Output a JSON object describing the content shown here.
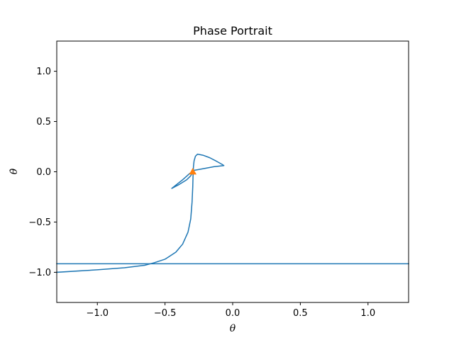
{
  "chart_data": {
    "type": "line",
    "title": "Phase Portrait",
    "xlabel": "θ",
    "ylabel": "θ̇",
    "xlim": [
      -1.3,
      1.3
    ],
    "ylim": [
      -1.3,
      1.3
    ],
    "grid": false,
    "xticks": [
      {
        "value": -1.0,
        "label": "−1.0"
      },
      {
        "value": -0.5,
        "label": "−0.5"
      },
      {
        "value": 0.0,
        "label": "0.0"
      },
      {
        "value": 0.5,
        "label": "0.5"
      },
      {
        "value": 1.0,
        "label": "1.0"
      }
    ],
    "yticks": [
      {
        "value": -1.0,
        "label": "−1.0"
      },
      {
        "value": -0.5,
        "label": "−0.5"
      },
      {
        "value": 0.0,
        "label": "0.0"
      },
      {
        "value": 0.5,
        "label": "0.5"
      },
      {
        "value": 1.0,
        "label": "1.0"
      }
    ],
    "series": [
      {
        "color": "#1f77b4",
        "points": [
          [
            -1.3,
            -1.0
          ],
          [
            -1.0,
            -0.975
          ],
          [
            -0.8,
            -0.955
          ],
          [
            -0.65,
            -0.93
          ],
          [
            -0.58,
            -0.905
          ],
          [
            -0.5,
            -0.87
          ],
          [
            -0.42,
            -0.8
          ],
          [
            -0.37,
            -0.72
          ],
          [
            -0.33,
            -0.6
          ],
          [
            -0.31,
            -0.47
          ],
          [
            -0.3,
            -0.3
          ],
          [
            -0.295,
            -0.15
          ],
          [
            -0.293,
            -0.05
          ],
          [
            -0.29,
            0.05
          ],
          [
            -0.285,
            0.11
          ],
          [
            -0.275,
            0.155
          ],
          [
            -0.26,
            0.175
          ],
          [
            -0.22,
            0.165
          ],
          [
            -0.17,
            0.14
          ],
          [
            -0.12,
            0.105
          ],
          [
            -0.08,
            0.075
          ],
          [
            -0.065,
            0.062
          ],
          [
            -0.14,
            0.05
          ],
          [
            -0.22,
            0.03
          ],
          [
            -0.29,
            0.013
          ],
          [
            -0.32,
            -0.02
          ],
          [
            -0.37,
            -0.08
          ],
          [
            -0.45,
            -0.165
          ],
          [
            -0.4,
            -0.13
          ],
          [
            -0.34,
            -0.08
          ],
          [
            -0.31,
            -0.04
          ],
          [
            -0.295,
            0.0
          ]
        ]
      },
      {
        "color": "#1f77b4",
        "points": [
          [
            -1.3,
            -0.915
          ],
          [
            1.3,
            -0.915
          ]
        ]
      }
    ],
    "markers": [
      {
        "x": -0.295,
        "y": 0.0,
        "color": "#ff7f0e"
      }
    ]
  }
}
